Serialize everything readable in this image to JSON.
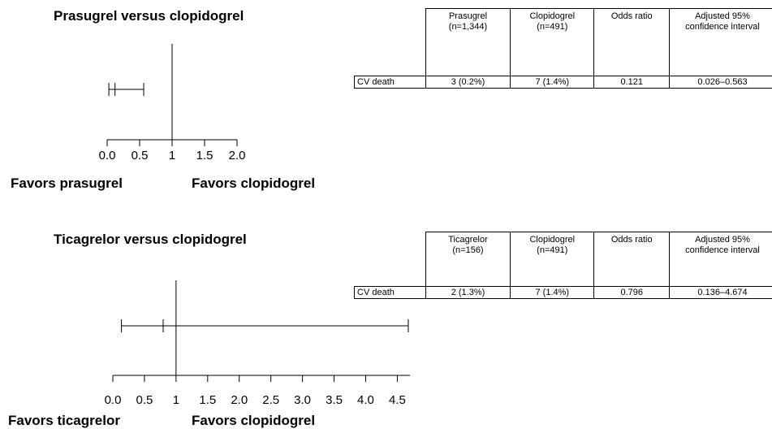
{
  "chart_data": [
    {
      "type": "forest",
      "title": "Prasugrel versus clopidogrel",
      "favors_left": "Favors prasugrel",
      "favors_right": "Favors clopidogrel",
      "reference_line": 1,
      "xlim": [
        0,
        2
      ],
      "x_ticks": [
        "0.0",
        "0.5",
        "1",
        "1.5",
        "2.0"
      ],
      "x_tick_values": [
        0,
        0.5,
        1,
        1.5,
        2
      ],
      "estimate": 0.121,
      "ci": [
        0.026,
        0.563
      ],
      "table": {
        "headers": [
          "Prasugrel\n(n=1,344)",
          "Clopidogrel\n(n=491)",
          "Odds ratio",
          "Adjusted 95%\nconfidence interval"
        ],
        "rows": [
          {
            "label": "CV death",
            "cells": [
              "3 (0.2%)",
              "7 (1.4%)",
              "0.121",
              "0.026–0.563"
            ]
          }
        ]
      }
    },
    {
      "type": "forest",
      "title": "Ticagrelor versus clopidogrel",
      "favors_left": "Favors ticagrelor",
      "favors_right": "Favors clopidogrel",
      "reference_line": 1,
      "xlim": [
        0,
        4.7
      ],
      "x_ticks": [
        "0.0",
        "0.5",
        "1",
        "1.5",
        "2.0",
        "2.5",
        "3.0",
        "3.5",
        "4.0",
        "4.5"
      ],
      "x_tick_values": [
        0,
        0.5,
        1,
        1.5,
        2,
        2.5,
        3,
        3.5,
        4,
        4.5
      ],
      "estimate": 0.796,
      "ci": [
        0.136,
        4.674
      ],
      "table": {
        "headers": [
          "Ticagrelor\n(n=156)",
          "Clopidogrel\n(n=491)",
          "Odds ratio",
          "Adjusted 95%\nconfidence interval"
        ],
        "rows": [
          {
            "label": "CV death",
            "cells": [
              "2 (1.3%)",
              "7 (1.4%)",
              "0.796",
              "0.136–4.674"
            ]
          }
        ]
      }
    }
  ]
}
